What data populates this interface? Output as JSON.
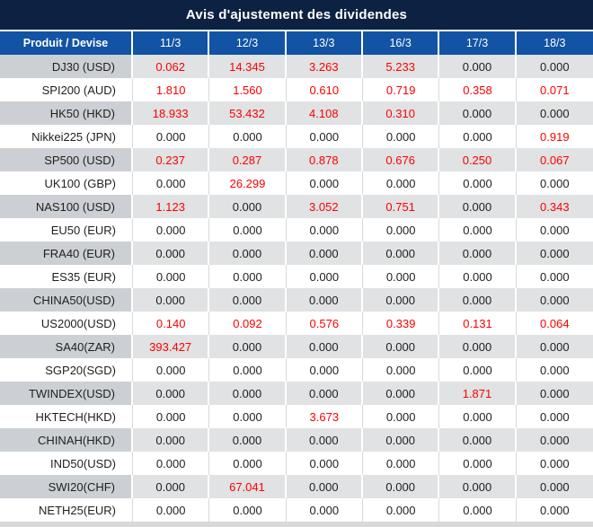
{
  "title": "Avis d'ajustement des dividendes",
  "table": {
    "product_header": "Produit / Devise",
    "date_headers": [
      "11/3",
      "12/3",
      "13/3",
      "16/3",
      "17/3",
      "18/3"
    ],
    "rows": [
      {
        "product": "DJ30 (USD)",
        "values": [
          "0.062",
          "14.345",
          "3.263",
          "5.233",
          "0.000",
          "0.000"
        ]
      },
      {
        "product": "SPI200 (AUD)",
        "values": [
          "1.810",
          "1.560",
          "0.610",
          "0.719",
          "0.358",
          "0.071"
        ]
      },
      {
        "product": "HK50 (HKD)",
        "values": [
          "18.933",
          "53.432",
          "4.108",
          "0.310",
          "0.000",
          "0.000"
        ]
      },
      {
        "product": "Nikkei225 (JPN)",
        "values": [
          "0.000",
          "0.000",
          "0.000",
          "0.000",
          "0.000",
          "0.919"
        ]
      },
      {
        "product": "SP500 (USD)",
        "values": [
          "0.237",
          "0.287",
          "0.878",
          "0.676",
          "0.250",
          "0.067"
        ]
      },
      {
        "product": "UK100 (GBP)",
        "values": [
          "0.000",
          "26.299",
          "0.000",
          "0.000",
          "0.000",
          "0.000"
        ]
      },
      {
        "product": "NAS100 (USD)",
        "values": [
          "1.123",
          "0.000",
          "3.052",
          "0.751",
          "0.000",
          "0.343"
        ]
      },
      {
        "product": "EU50 (EUR)",
        "values": [
          "0.000",
          "0.000",
          "0.000",
          "0.000",
          "0.000",
          "0.000"
        ]
      },
      {
        "product": "FRA40 (EUR)",
        "values": [
          "0.000",
          "0.000",
          "0.000",
          "0.000",
          "0.000",
          "0.000"
        ]
      },
      {
        "product": "ES35 (EUR)",
        "values": [
          "0.000",
          "0.000",
          "0.000",
          "0.000",
          "0.000",
          "0.000"
        ]
      },
      {
        "product": "CHINA50(USD)",
        "values": [
          "0.000",
          "0.000",
          "0.000",
          "0.000",
          "0.000",
          "0.000"
        ]
      },
      {
        "product": "US2000(USD)",
        "values": [
          "0.140",
          "0.092",
          "0.576",
          "0.339",
          "0.131",
          "0.064"
        ]
      },
      {
        "product": "SA40(ZAR)",
        "values": [
          "393.427",
          "0.000",
          "0.000",
          "0.000",
          "0.000",
          "0.000"
        ]
      },
      {
        "product": "SGP20(SGD)",
        "values": [
          "0.000",
          "0.000",
          "0.000",
          "0.000",
          "0.000",
          "0.000"
        ]
      },
      {
        "product": "TWINDEX(USD)",
        "values": [
          "0.000",
          "0.000",
          "0.000",
          "0.000",
          "1.871",
          "0.000"
        ]
      },
      {
        "product": "HKTECH(HKD)",
        "values": [
          "0.000",
          "0.000",
          "3.673",
          "0.000",
          "0.000",
          "0.000"
        ]
      },
      {
        "product": "CHINAH(HKD)",
        "values": [
          "0.000",
          "0.000",
          "0.000",
          "0.000",
          "0.000",
          "0.000"
        ]
      },
      {
        "product": "IND50(USD)",
        "values": [
          "0.000",
          "0.000",
          "0.000",
          "0.000",
          "0.000",
          "0.000"
        ]
      },
      {
        "product": "SWI20(CHF)",
        "values": [
          "0.000",
          "67.041",
          "0.000",
          "0.000",
          "0.000",
          "0.000"
        ]
      },
      {
        "product": "NETH25(EUR)",
        "values": [
          "0.000",
          "0.000",
          "0.000",
          "0.000",
          "0.000",
          "0.000"
        ]
      }
    ],
    "zero_value": "0.000"
  },
  "colors": {
    "title_bg": "#0d2242",
    "header_bg": "#1253a4",
    "header_text": "#ffffff",
    "gray_row_product_bg": "#ccd0d4",
    "gray_row_value_bg": "#e0e2e3",
    "white_row_bg": "#ffffff",
    "nonzero_value_text": "#fe0000",
    "zero_value_text": "#1f1f1f"
  }
}
